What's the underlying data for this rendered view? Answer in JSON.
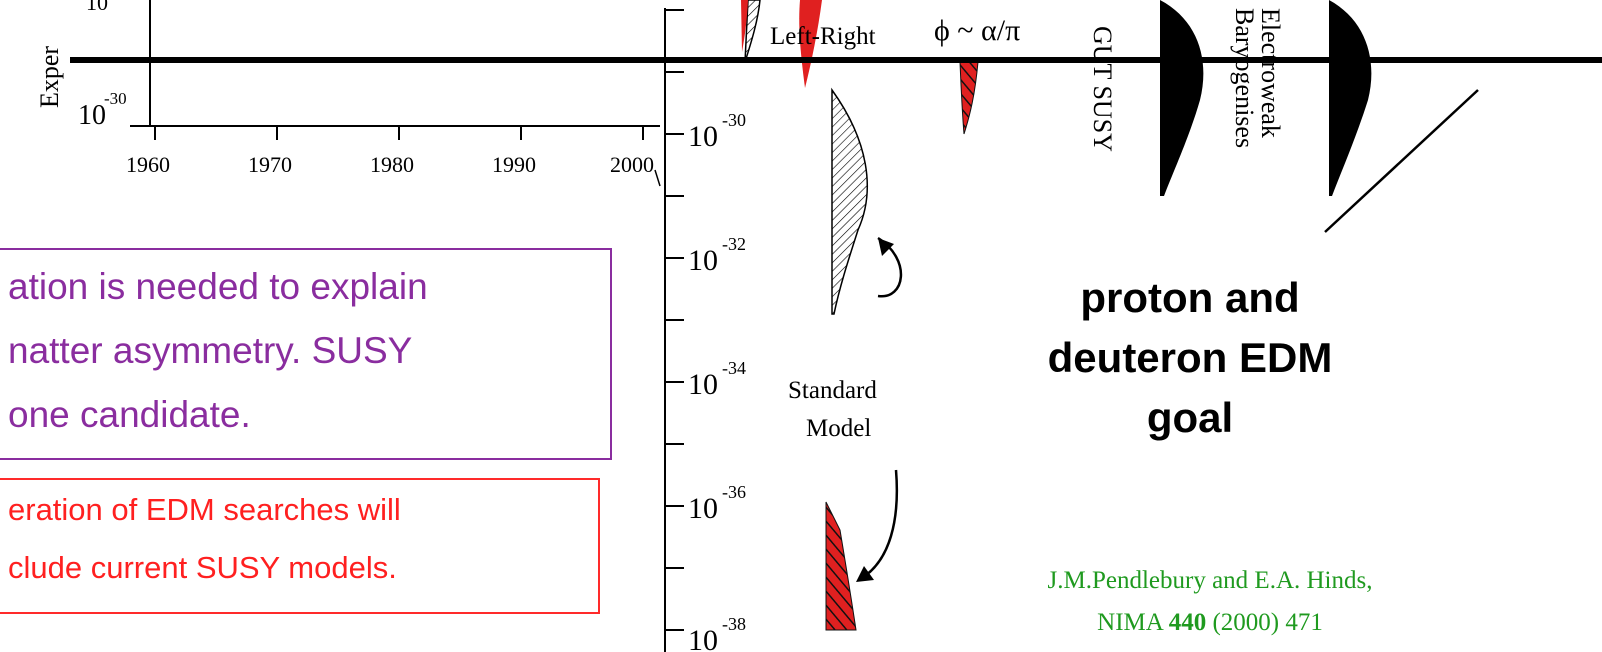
{
  "left_plot": {
    "y_label": "Exper",
    "y_tick_top": "10",
    "y_tick_bottom_base": "10",
    "y_tick_bottom_exp": "-30",
    "x_ticks": [
      "1960",
      "1970",
      "1980",
      "1990",
      "2000"
    ]
  },
  "scale": {
    "ticks": [
      {
        "base": "10",
        "exp": "-30"
      },
      {
        "base": "10",
        "exp": "-32"
      },
      {
        "base": "10",
        "exp": "-34"
      },
      {
        "base": "10",
        "exp": "-36"
      },
      {
        "base": "10",
        "exp": "-38"
      }
    ]
  },
  "models": {
    "left_right": "Left-Right",
    "phi": "ϕ ~ α/π",
    "gut_susy": "GUT SUSY",
    "electroweak_1": "Electroweak",
    "electroweak_2": "Baryogenises",
    "standard_1": "Standard",
    "standard_2": "Model"
  },
  "purple_box": {
    "lines": [
      "ation is needed to explain",
      "natter asymmetry.  SUSY",
      "one candidate."
    ]
  },
  "red_box": {
    "lines": [
      "eration of EDM searches will",
      "clude current SUSY models."
    ]
  },
  "goal": {
    "lines": [
      "proton and",
      "deuteron EDM",
      "goal"
    ]
  },
  "citation": {
    "line1": "J.M.Pendlebury and E.A. Hinds,",
    "journal": "NIMA",
    "volume": "440",
    "rest": "(2000) 471"
  },
  "colors": {
    "purple": "#8a2d9f",
    "red": "#ff2a2a",
    "green": "#1f9a1f"
  }
}
